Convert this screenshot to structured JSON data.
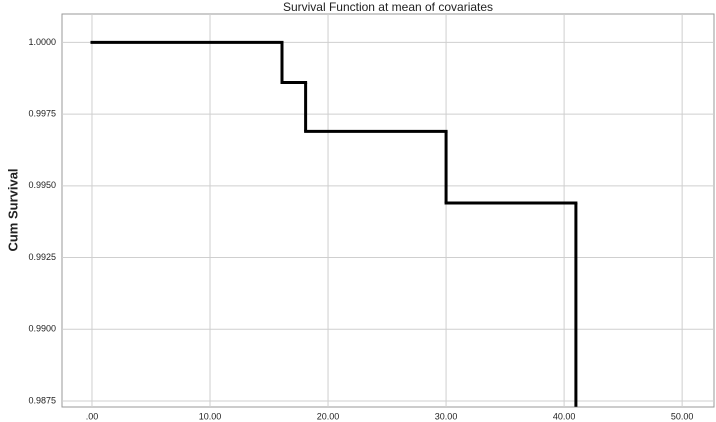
{
  "chart_data": {
    "type": "step",
    "title": "Survival Function at mean of covariates",
    "y_label": "Cum Survival",
    "x": [
      0,
      16.1,
      18.1,
      30,
      41
    ],
    "values": [
      1.0,
      0.9986,
      0.9969,
      0.9944,
      0.9873
    ],
    "color": "#000000",
    "xlim": [
      -2.54,
      52.7
    ],
    "ylim": [
      0.98729,
      1.00099
    ],
    "xticks": [
      {
        "value": 0,
        "label": ".00"
      },
      {
        "value": 10,
        "label": "10.00"
      },
      {
        "value": 20,
        "label": "20.00"
      },
      {
        "value": 30,
        "label": "30.00"
      },
      {
        "value": 40,
        "label": "40.00"
      },
      {
        "value": 50,
        "label": "50.00"
      }
    ],
    "yticks": [
      {
        "value": 1.0,
        "label": "1.0000"
      },
      {
        "value": 0.9975,
        "label": "0.9975"
      },
      {
        "value": 0.995,
        "label": "0.9950"
      },
      {
        "value": 0.9925,
        "label": "0.9925"
      },
      {
        "value": 0.99,
        "label": "0.9900"
      },
      {
        "value": 0.9875,
        "label": "0.9875"
      }
    ],
    "grid": true
  }
}
